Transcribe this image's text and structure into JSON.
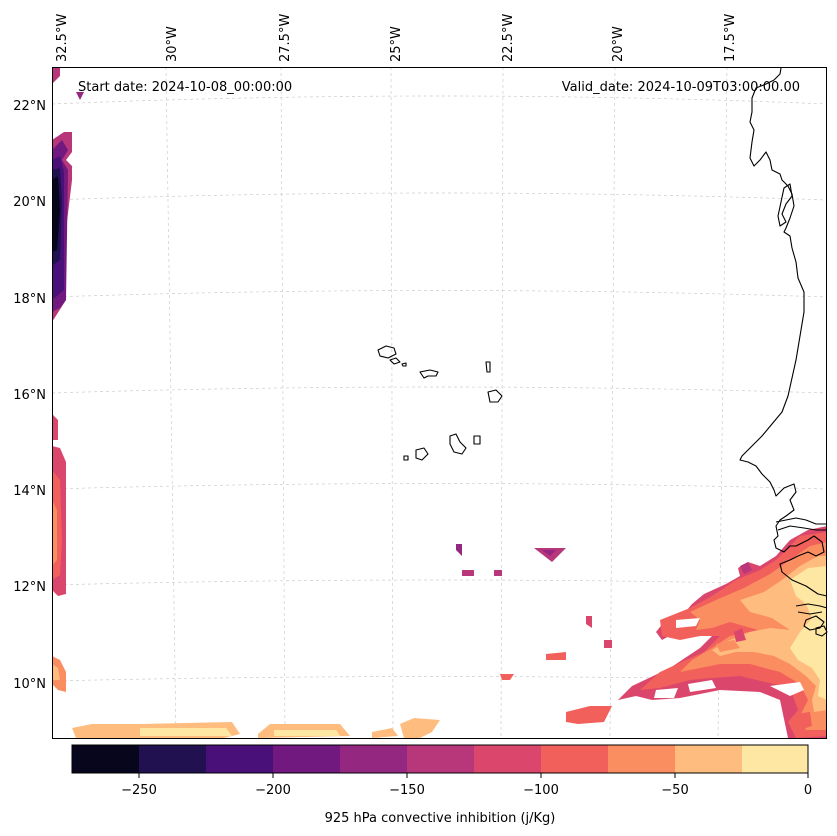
{
  "map": {
    "start_label": "Start date: 2024-10-08_00:00:00",
    "valid_label": "Valid_date: 2024-10-09T03:00:00.00",
    "lon_labels": [
      "32.5°W",
      "30°W",
      "27.5°W",
      "25°W",
      "22.5°W",
      "20°W",
      "17.5°W"
    ],
    "lat_labels": [
      "22°N",
      "20°N",
      "18°N",
      "16°N",
      "14°N",
      "12°N",
      "10°N"
    ],
    "colors": {
      "coast": "#000000",
      "grid": "#cccccc",
      "bar_edge": "#555555"
    }
  },
  "colorbar": {
    "label": "925 hPa convective inhibition (j/Kg)",
    "ticks": [
      "−250",
      "−200",
      "−150",
      "−100",
      "−50",
      "0"
    ],
    "levels": [
      {
        "range": "-275 to -250",
        "color": "#07061c"
      },
      {
        "range": "-250 to -225",
        "color": "#221150"
      },
      {
        "range": "-225 to -200",
        "color": "#4a1079"
      },
      {
        "range": "-200 to -175",
        "color": "#71197f"
      },
      {
        "range": "-175 to -150",
        "color": "#942880"
      },
      {
        "range": "-150 to -125",
        "color": "#b7377a"
      },
      {
        "range": "-125 to -100",
        "color": "#db476c"
      },
      {
        "range": "-100 to -75",
        "color": "#f2605b"
      },
      {
        "range": "-75 to -50",
        "color": "#fb8e60"
      },
      {
        "range": "-50 to -25",
        "color": "#febd7f"
      },
      {
        "range": "-25 to 0",
        "color": "#fde7a3"
      }
    ]
  }
}
